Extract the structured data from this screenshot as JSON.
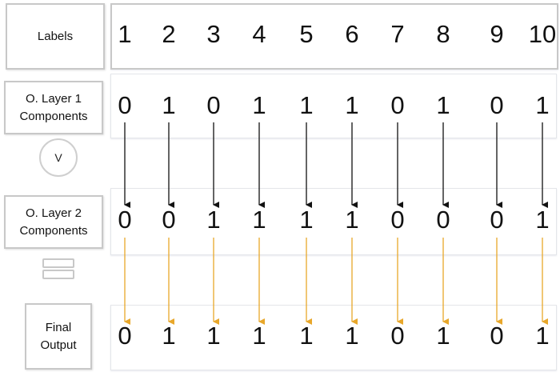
{
  "rows": {
    "labels": {
      "title": "Labels",
      "values": [
        "1",
        "2",
        "3",
        "4",
        "5",
        "6",
        "7",
        "8",
        "9",
        "10"
      ]
    },
    "layer1": {
      "title_line1": "O. Layer 1",
      "title_line2": "Components",
      "values": [
        "0",
        "1",
        "0",
        "1",
        "1",
        "1",
        "0",
        "1",
        "0",
        "1"
      ]
    },
    "layer2": {
      "title_line1": "O. Layer 2",
      "title_line2": "Components",
      "values": [
        "0",
        "0",
        "1",
        "1",
        "1",
        "1",
        "0",
        "0",
        "0",
        "1"
      ]
    },
    "final": {
      "title_line1": "Final",
      "title_line2": "Output",
      "values": [
        "0",
        "1",
        "1",
        "1",
        "1",
        "1",
        "0",
        "1",
        "0",
        "1"
      ]
    }
  },
  "operator": {
    "symbol": "V",
    "equals_icon": "equals-icon"
  },
  "colors": {
    "black_arrow": "#111111",
    "orange_arrow": "#e8a72a"
  }
}
